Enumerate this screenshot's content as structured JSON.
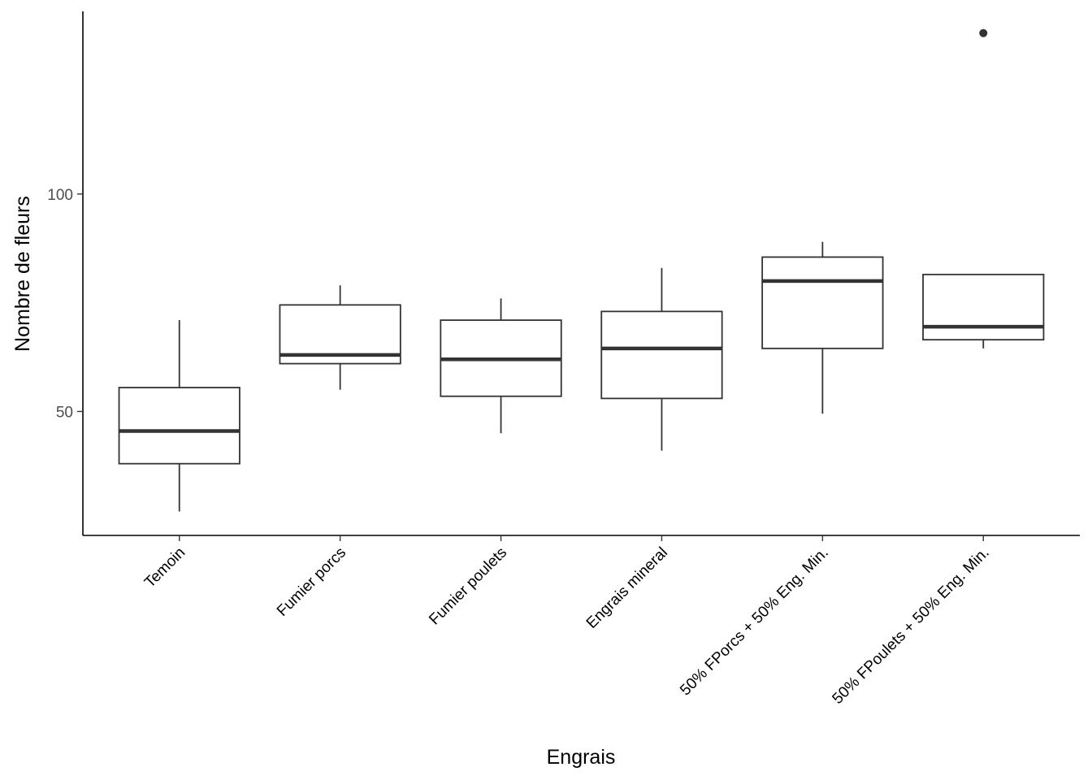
{
  "chart_data": {
    "type": "boxplot",
    "xlabel": "Engrais",
    "ylabel": "Nombre de fleurs",
    "ylim": [
      21.5,
      142
    ],
    "yticks": [
      50,
      100
    ],
    "grid": false,
    "categories": [
      "Temoin",
      "Fumier porcs",
      "Fumier poulets",
      "Engrais mineral",
      "50% FPorcs + 50% Eng. Min.",
      "50% FPoulets + 50% Eng. Min."
    ],
    "boxes": [
      {
        "category": "Temoin",
        "whisker_low": 27,
        "q1": 38,
        "median": 45.5,
        "q3": 55.5,
        "whisker_high": 71,
        "outliers": []
      },
      {
        "category": "Fumier porcs",
        "whisker_low": 55,
        "q1": 61,
        "median": 63,
        "q3": 74.5,
        "whisker_high": 79,
        "outliers": []
      },
      {
        "category": "Fumier poulets",
        "whisker_low": 45,
        "q1": 53.5,
        "median": 62,
        "q3": 71,
        "whisker_high": 76,
        "outliers": []
      },
      {
        "category": "Engrais mineral",
        "whisker_low": 41,
        "q1": 53,
        "median": 64.5,
        "q3": 73,
        "whisker_high": 83,
        "outliers": []
      },
      {
        "category": "50% FPorcs + 50% Eng. Min.",
        "whisker_low": 49.5,
        "q1": 64.5,
        "median": 80,
        "q3": 85.5,
        "whisker_high": 89,
        "outliers": []
      },
      {
        "category": "50% FPoulets + 50% Eng. Min.",
        "whisker_low": 64.5,
        "q1": 66.5,
        "median": 69.5,
        "q3": 81.5,
        "whisker_high": 81.5,
        "outliers": [
          137
        ]
      }
    ],
    "colors": {
      "box_stroke": "#333333",
      "box_fill": "#ffffff",
      "axis": "#000000"
    }
  }
}
